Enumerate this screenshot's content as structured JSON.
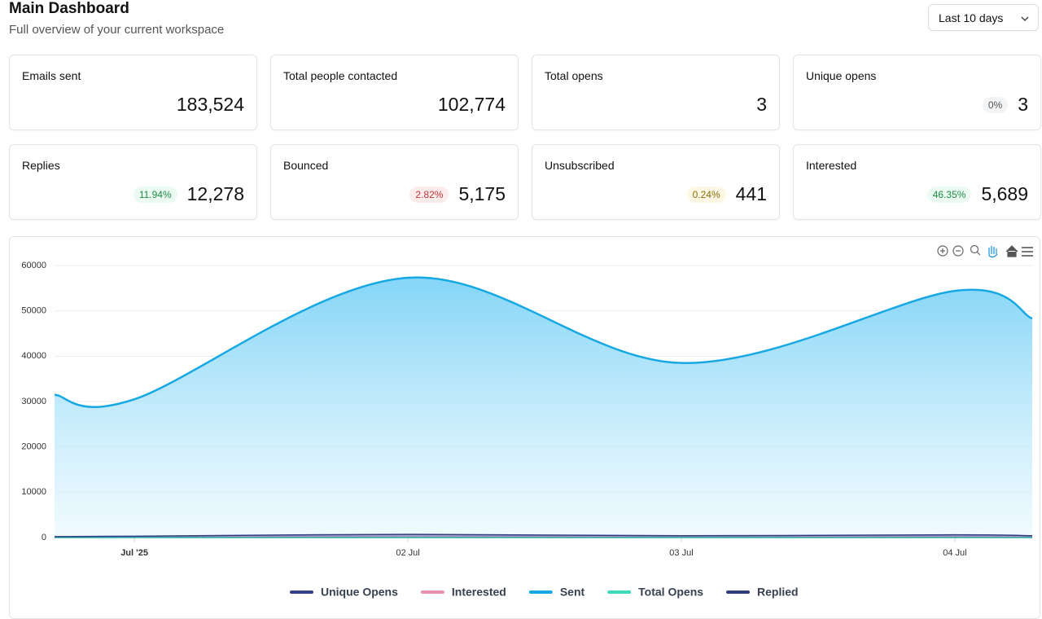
{
  "header": {
    "title": "Main Dashboard",
    "subtitle": "Full overview of your current workspace"
  },
  "filter": {
    "label": "Last 10 days"
  },
  "cards": [
    {
      "label": "Emails sent",
      "value": "183,524"
    },
    {
      "label": "Total people contacted",
      "value": "102,774"
    },
    {
      "label": "Total opens",
      "value": "3"
    },
    {
      "label": "Unique opens",
      "value": "3",
      "badge": "0%",
      "tone": "neutral"
    },
    {
      "label": "Replies",
      "value": "12,278",
      "badge": "11.94%",
      "tone": "good"
    },
    {
      "label": "Bounced",
      "value": "5,175",
      "badge": "2.82%",
      "tone": "bad"
    },
    {
      "label": "Unsubscribed",
      "value": "441",
      "badge": "0.24%",
      "tone": "warn"
    },
    {
      "label": "Interested",
      "value": "5,689",
      "badge": "46.35%",
      "tone": "good"
    }
  ],
  "chart_data": {
    "type": "area",
    "x": [
      0.708,
      1,
      2,
      3,
      4,
      4.283
    ],
    "xlim": [
      0.708,
      4.283
    ],
    "xticks": [
      {
        "value": 1,
        "label": "Jul '25"
      },
      {
        "value": 2,
        "label": "02 Jul"
      },
      {
        "value": 3,
        "label": "03 Jul"
      },
      {
        "value": 4,
        "label": "04 Jul"
      }
    ],
    "ylim": [
      0,
      60000
    ],
    "yticks": [
      0,
      10000,
      20000,
      30000,
      40000,
      50000,
      60000
    ],
    "grid": true,
    "series": [
      {
        "name": "Unique Opens",
        "color": "#34418a",
        "values": [
          0,
          0,
          1,
          0,
          0,
          0
        ]
      },
      {
        "name": "Interested",
        "color": "#e890ad",
        "values": [
          100,
          150,
          350,
          200,
          300,
          200
        ]
      },
      {
        "name": "Sent",
        "color": "#17a8e3",
        "values": [
          31500,
          30500,
          57300,
          38500,
          54400,
          48300
        ]
      },
      {
        "name": "Total Opens",
        "color": "#3dd9b8",
        "values": [
          0,
          0,
          2,
          0,
          1,
          0
        ]
      },
      {
        "name": "Replied",
        "color": "#2f3d85",
        "values": [
          200,
          300,
          700,
          400,
          600,
          400
        ]
      }
    ]
  }
}
